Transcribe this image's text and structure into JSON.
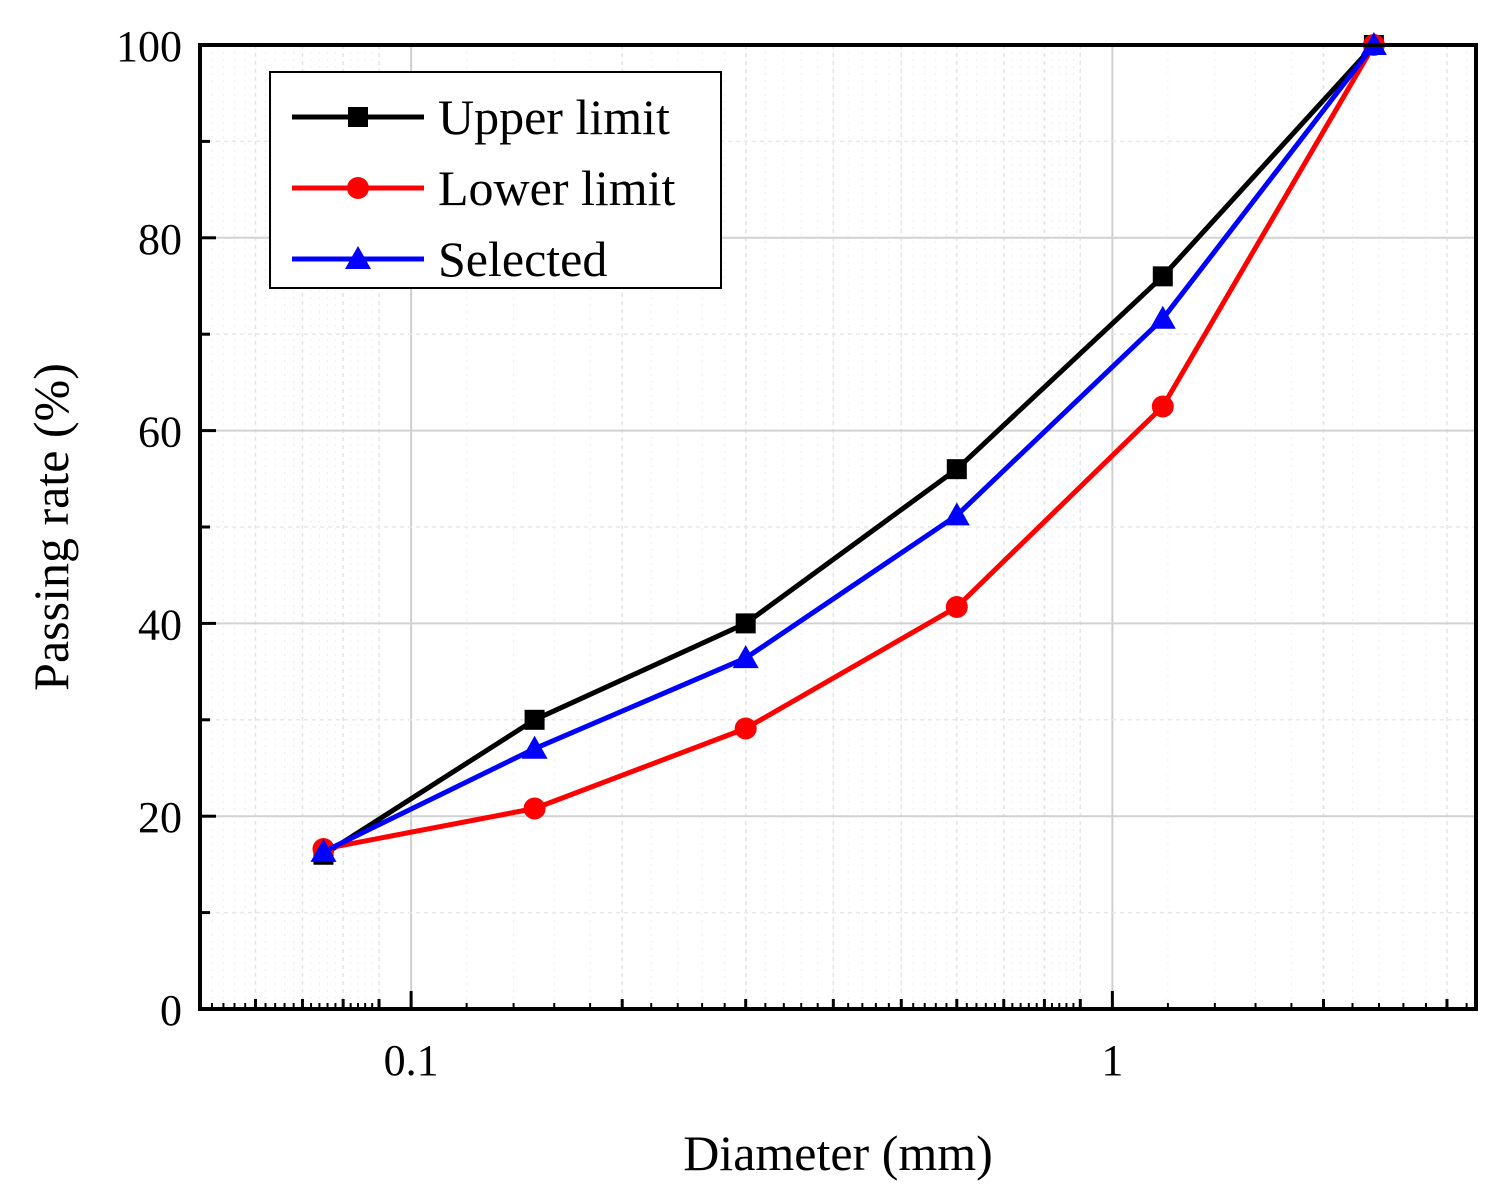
{
  "chart_data": {
    "type": "line",
    "title": "",
    "xlabel": "Diameter (mm)",
    "ylabel": "Passing rate (%)",
    "xscale": "log",
    "xlim": [
      0.05,
      3.3
    ],
    "ylim": [
      0,
      100
    ],
    "yticks": [
      0,
      20,
      40,
      60,
      80,
      100
    ],
    "xticks": [
      0.1,
      1
    ],
    "xtick_labels": [
      "0.1",
      "1"
    ],
    "ytick_labels": [
      "0",
      "20",
      "40",
      "60",
      "80",
      "100"
    ],
    "grid": true,
    "legend_position": "top-left",
    "x": [
      0.075,
      0.15,
      0.3,
      0.6,
      1.18,
      2.36
    ],
    "series": [
      {
        "name": "Upper limit",
        "values": [
          16,
          30,
          40,
          56,
          76,
          100
        ],
        "color": "#000000",
        "marker": "square"
      },
      {
        "name": "Lower limit",
        "values": [
          16.6,
          20.8,
          29.1,
          41.7,
          62.5,
          100
        ],
        "color": "#ff0000",
        "marker": "circle"
      },
      {
        "name": "Selected",
        "values": [
          16.3,
          27,
          36.4,
          51.2,
          71.6,
          100
        ],
        "color": "#0000ff",
        "marker": "triangle"
      }
    ]
  }
}
